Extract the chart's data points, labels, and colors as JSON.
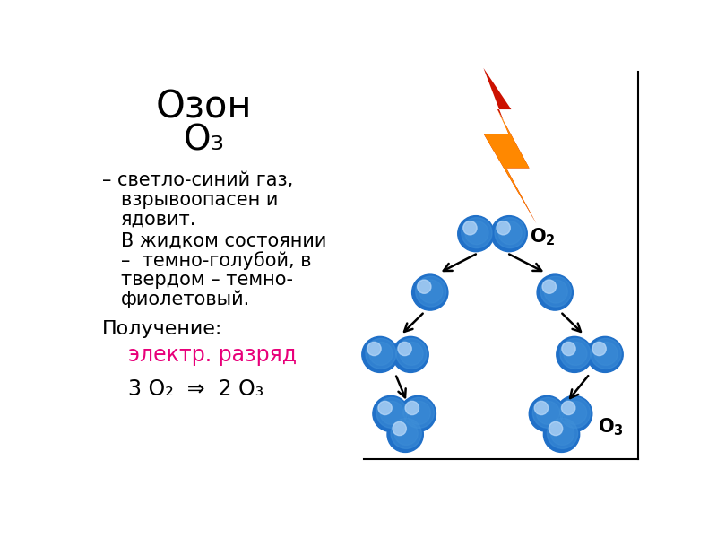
{
  "title": "Озон",
  "formula_title": "O₃",
  "desc_line1": "– светло-синий газ,",
  "desc_line2": "взрывоопасен и",
  "desc_line3": "ядовит.",
  "desc_line4": "В жидком состоянии",
  "desc_line5": "–  темно-голубой, в",
  "desc_line6": "твердом – темно-",
  "desc_line7": "фиолетовый.",
  "poluchenie": "Получение:",
  "elektr": "электр. разряд",
  "equation": "3 O₂  ⇒  2 O₃",
  "bg_color": "#ffffff",
  "text_color": "#000000",
  "pink_color": "#e8007a",
  "ball_color_main": "#2070c8",
  "ball_color_mid": "#4090d8",
  "ball_highlight": "#80b8f0",
  "border_color": "#000000"
}
